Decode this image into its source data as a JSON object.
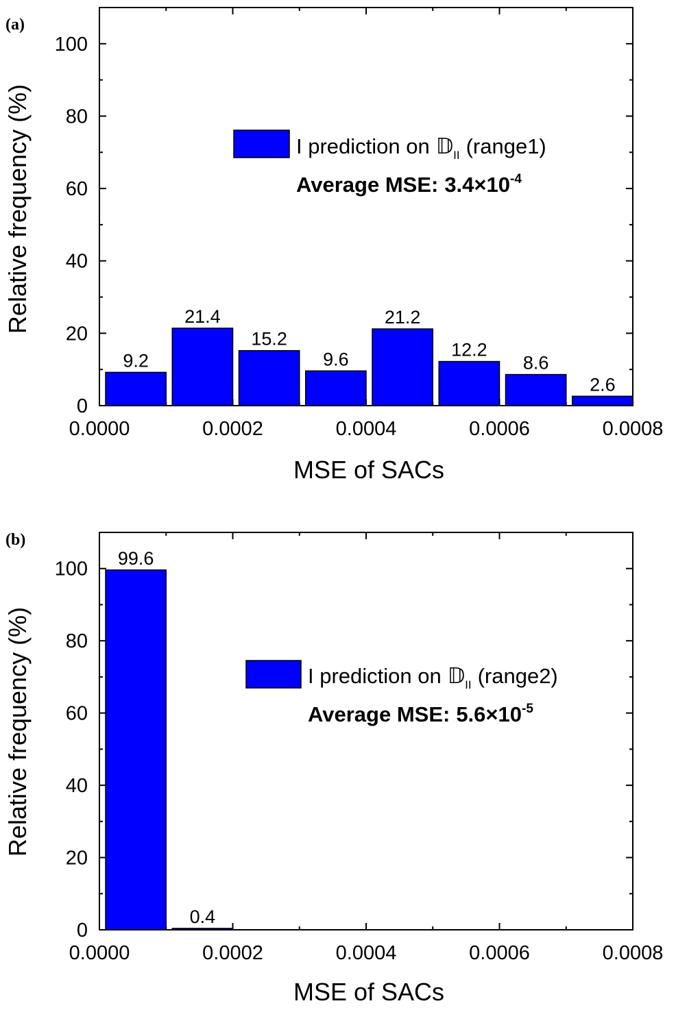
{
  "chart_data": [
    {
      "type": "bar",
      "panel_label": "(a)",
      "bin_width": 0.0001,
      "x": [
        5e-05,
        0.00015,
        0.00025,
        0.00035,
        0.00045,
        0.00055,
        0.00065,
        0.00075
      ],
      "values": [
        9.2,
        21.4,
        15.2,
        9.6,
        21.2,
        12.2,
        8.6,
        2.6
      ],
      "value_labels": [
        "9.2",
        "21.4",
        "15.2",
        "9.6",
        "21.2",
        "12.2",
        "8.6",
        "2.6"
      ],
      "xlabel": "MSE of SACs",
      "ylabel": "Relative frequency (%)",
      "xlim": [
        0,
        0.0008
      ],
      "ylim": [
        0,
        110
      ],
      "xticks": [
        "0.0000",
        "0.0002",
        "0.0004",
        "0.0006",
        "0.0008"
      ],
      "yticks": [
        "0",
        "20",
        "40",
        "60",
        "80",
        "100"
      ],
      "legend": {
        "text": "I prediction on",
        "symbol": "𝔻",
        "subscript": "II",
        "suffix": "(range1)",
        "placement": "upper-center"
      },
      "annotation": {
        "prefix": "Average MSE:",
        "mantissa": "3.4×10",
        "exponent": "-4"
      },
      "bar_color": "#0000FF",
      "grid": false
    },
    {
      "type": "bar",
      "panel_label": "(b)",
      "bin_width": 0.0001,
      "x": [
        5e-05,
        0.00015
      ],
      "values": [
        99.6,
        0.4
      ],
      "value_labels": [
        "99.6",
        "0.4"
      ],
      "xlabel": "MSE of SACs",
      "ylabel": "Relative frequency (%)",
      "xlim": [
        0,
        0.0008
      ],
      "ylim": [
        0,
        110
      ],
      "xticks": [
        "0.0000",
        "0.0002",
        "0.0004",
        "0.0006",
        "0.0008"
      ],
      "yticks": [
        "0",
        "20",
        "40",
        "60",
        "80",
        "100"
      ],
      "legend": {
        "text": "I prediction on",
        "symbol": "𝔻",
        "subscript": "II",
        "suffix": "(range2)",
        "placement": "center-right"
      },
      "annotation": {
        "prefix": "Average MSE:",
        "mantissa": "5.6×10",
        "exponent": "-5"
      },
      "bar_color": "#0000FF",
      "grid": false
    }
  ]
}
